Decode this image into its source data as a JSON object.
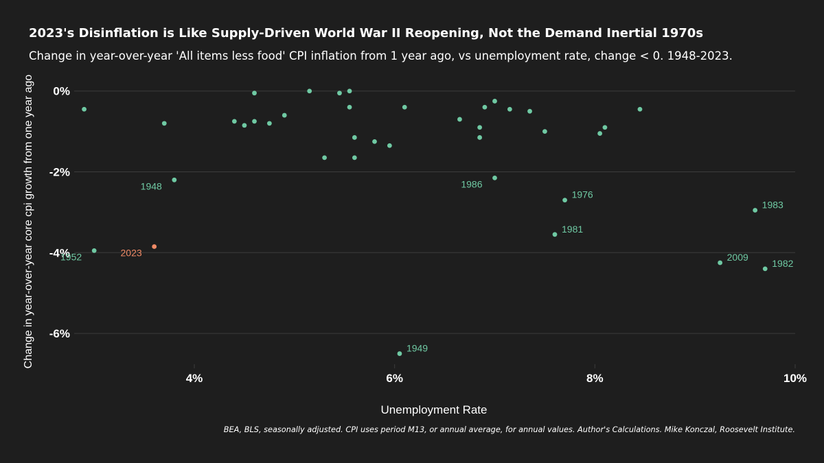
{
  "chart_data": {
    "type": "scatter",
    "title": "2023's Disinflation is Like Supply-Driven World War II Reopening, Not the Demand Inertial 1970s",
    "subtitle": "Change in year-over-year 'All items less food' CPI inflation from 1 year ago, vs unemployment rate, change < 0. 1948-2023.",
    "xlabel": "Unemployment Rate",
    "ylabel": "Change in year-over-year core cpi growth from one year ago",
    "caption": "BEA, BLS, seasonally adjusted. CPI uses period M13, or annual average, for annual values. Author's Calculations. Mike Konczal, Roosevelt Institute.",
    "xlim": [
      2.8,
      10.0
    ],
    "ylim": [
      -7.0,
      0.25
    ],
    "x_ticks": [
      {
        "value": 4,
        "label": "4%"
      },
      {
        "value": 6,
        "label": "6%"
      },
      {
        "value": 8,
        "label": "8%"
      },
      {
        "value": 10,
        "label": "10%"
      }
    ],
    "y_ticks": [
      {
        "value": 0,
        "label": "0%"
      },
      {
        "value": -2,
        "label": "-2%"
      },
      {
        "value": -4,
        "label": "-4%"
      },
      {
        "value": -6,
        "label": "-6%"
      }
    ],
    "grid": "horizontal",
    "colors": {
      "background": "#1e1e1e",
      "grid": "#3c3c3c",
      "point": "#6fc9a3",
      "highlight": "#f08a66",
      "text": "#ffffff"
    },
    "points": [
      {
        "x": 2.9,
        "y": -0.45
      },
      {
        "x": 3.7,
        "y": -0.8
      },
      {
        "x": 3.8,
        "y": -2.2,
        "label": "1948",
        "label_side": "left"
      },
      {
        "x": 3.0,
        "y": -3.95,
        "label": "1952",
        "label_side": "left"
      },
      {
        "x": 3.6,
        "y": -3.85,
        "label": "2023",
        "label_side": "left",
        "highlight": true
      },
      {
        "x": 4.4,
        "y": -0.75
      },
      {
        "x": 4.5,
        "y": -0.85
      },
      {
        "x": 4.6,
        "y": -0.05
      },
      {
        "x": 4.6,
        "y": -0.75
      },
      {
        "x": 4.75,
        "y": -0.8
      },
      {
        "x": 4.9,
        "y": -0.6
      },
      {
        "x": 5.15,
        "y": 0.0
      },
      {
        "x": 5.3,
        "y": -1.65
      },
      {
        "x": 5.45,
        "y": -0.05
      },
      {
        "x": 5.55,
        "y": 0.0
      },
      {
        "x": 5.55,
        "y": -0.4
      },
      {
        "x": 5.6,
        "y": -1.15
      },
      {
        "x": 5.6,
        "y": -1.65
      },
      {
        "x": 5.8,
        "y": -1.25
      },
      {
        "x": 5.95,
        "y": -1.35
      },
      {
        "x": 6.1,
        "y": -0.4
      },
      {
        "x": 6.05,
        "y": -6.5,
        "label": "1949",
        "label_side": "right"
      },
      {
        "x": 6.65,
        "y": -0.7
      },
      {
        "x": 6.85,
        "y": -0.9
      },
      {
        "x": 6.85,
        "y": -1.15
      },
      {
        "x": 6.9,
        "y": -0.4
      },
      {
        "x": 7.0,
        "y": -0.25
      },
      {
        "x": 7.0,
        "y": -2.15,
        "label": "1986",
        "label_side": "left"
      },
      {
        "x": 7.15,
        "y": -0.45
      },
      {
        "x": 7.35,
        "y": -0.5
      },
      {
        "x": 7.5,
        "y": -1.0
      },
      {
        "x": 7.7,
        "y": -2.7,
        "label": "1976",
        "label_side": "right"
      },
      {
        "x": 7.6,
        "y": -3.55,
        "label": "1981",
        "label_side": "right"
      },
      {
        "x": 8.1,
        "y": -0.9
      },
      {
        "x": 8.05,
        "y": -1.05
      },
      {
        "x": 8.45,
        "y": -0.45
      },
      {
        "x": 9.25,
        "y": -4.25,
        "label": "2009",
        "label_side": "right"
      },
      {
        "x": 9.6,
        "y": -2.95,
        "label": "1983",
        "label_side": "right"
      },
      {
        "x": 9.7,
        "y": -4.4,
        "label": "1982",
        "label_side": "right"
      }
    ]
  }
}
